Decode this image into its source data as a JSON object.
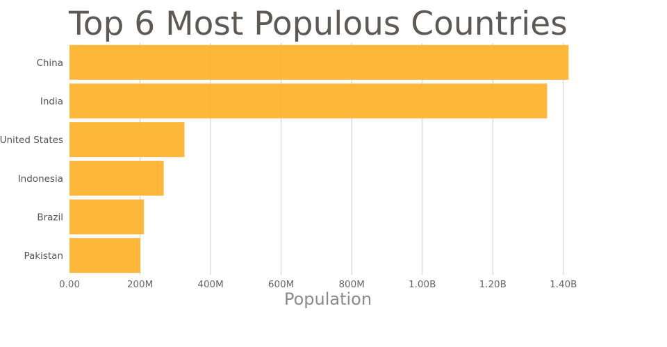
{
  "chart_data": {
    "type": "bar",
    "orientation": "horizontal",
    "title": "Top 6 Most Populous Countries",
    "xlabel": "Population",
    "ylabel": "",
    "categories": [
      "China",
      "India",
      "United States",
      "Indonesia",
      "Brazil",
      "Pakistan"
    ],
    "values": [
      1415000000,
      1354000000,
      326000000,
      267000000,
      211000000,
      201000000
    ],
    "xlim": [
      0,
      1560000000
    ],
    "x_ticks": [
      0,
      200000000,
      400000000,
      600000000,
      800000000,
      1000000000,
      1200000000,
      1400000000
    ],
    "x_tick_labels": [
      "0.00",
      "200M",
      "400M",
      "600M",
      "800M",
      "1.00B",
      "1.20B",
      "1.40B"
    ],
    "grid": "vertical",
    "legend": "none",
    "bar_color": "#fdb42f"
  }
}
